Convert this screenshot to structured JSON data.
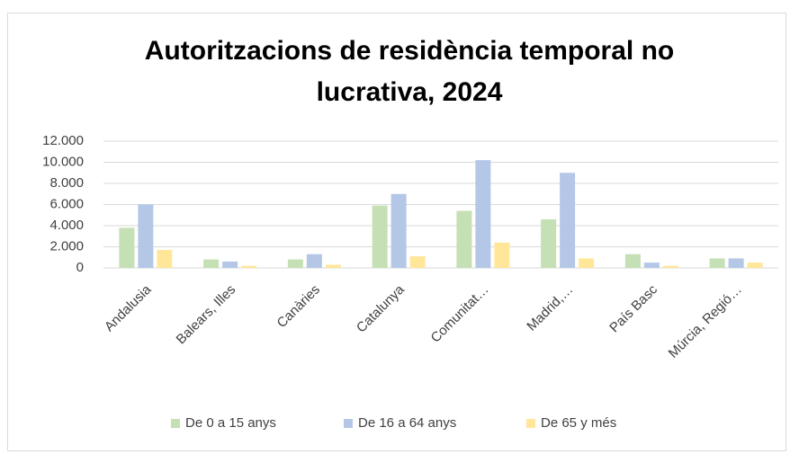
{
  "chart_data": {
    "type": "bar",
    "title": "Autoritzacions de residència temporal no lucrativa, 2024",
    "categories": [
      "Andalusia",
      "Balears, Illes",
      "Canàries",
      "Catalunya",
      "Comunitat…",
      "Madrid,…",
      "País Basc",
      "Múrcia, Regió…"
    ],
    "series": [
      {
        "name": "De 0 a 15 anys",
        "color": "#c5e0b4",
        "values": [
          3800,
          800,
          800,
          5900,
          5400,
          4600,
          1300,
          900
        ]
      },
      {
        "name": "De 16 a 64 anys",
        "color": "#b4c7e7",
        "values": [
          6000,
          600,
          1300,
          7000,
          10200,
          9000,
          500,
          900
        ]
      },
      {
        "name": "De 65 y més",
        "color": "#ffe699",
        "values": [
          1700,
          200,
          300,
          1100,
          2400,
          900,
          200,
          500
        ]
      }
    ],
    "ylim": [
      0,
      12000
    ],
    "yticks": [
      0,
      {
        "value": 2000,
        "label": "2.000"
      },
      {
        "value": 4000,
        "label": "4.000"
      },
      {
        "value": 6000,
        "label": "6.000"
      },
      {
        "value": 8000,
        "label": "8.000"
      },
      {
        "value": 10000,
        "label": "10.000"
      },
      {
        "value": 12000,
        "label": "12.000"
      }
    ],
    "grid": true,
    "legend": "bottom"
  }
}
